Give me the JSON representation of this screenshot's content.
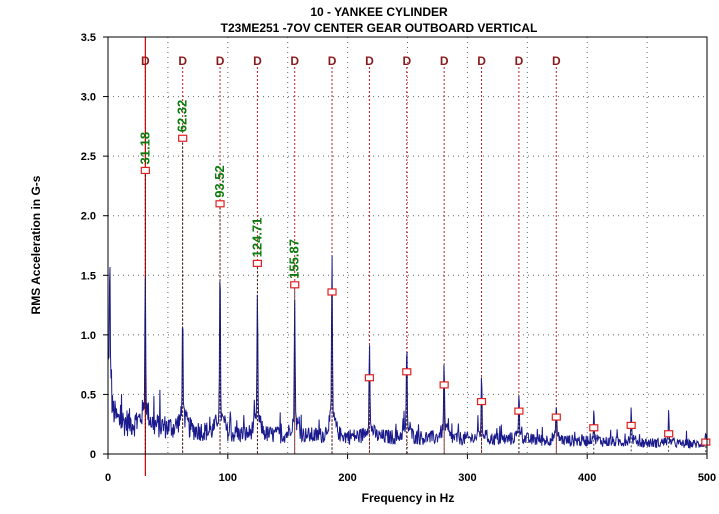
{
  "chart_data": {
    "type": "line",
    "title": "10   - YANKEE CYLINDER",
    "subtitle": "T23ME251  -7OV   CENTER GEAR OUTBOARD VERTICAL",
    "xlabel": "Frequency in Hz",
    "ylabel": "RMS Acceleration in G-s",
    "xlim": [
      0,
      500
    ],
    "ylim": [
      0,
      3.5
    ],
    "x_ticks": [
      "0",
      "100",
      "200",
      "300",
      "400",
      "500"
    ],
    "y_ticks": [
      "0",
      "0.5",
      "1.0",
      "1.5",
      "2.0",
      "2.5",
      "3.0",
      "3.5"
    ],
    "grid": true,
    "colors": {
      "spectrum": "#1a1a8c",
      "harmonic_line": "#b22222",
      "marker": "#e02020",
      "peak_label": "#0a7a0a",
      "cursor": "#cc0000"
    },
    "cursor_x": 31.18,
    "harmonic_marker_label": "D",
    "harmonic_lines_x": [
      31.18,
      62.32,
      93.52,
      124.71,
      155.87,
      187.0,
      218.2,
      249.4,
      280.6,
      311.8,
      343.0,
      374.2
    ],
    "peak_markers": [
      {
        "x": 31.18,
        "y": 2.38,
        "label": "31.18"
      },
      {
        "x": 62.32,
        "y": 2.65,
        "label": "62.32"
      },
      {
        "x": 93.52,
        "y": 2.1,
        "label": "93.52"
      },
      {
        "x": 124.71,
        "y": 1.6,
        "label": "124.71"
      },
      {
        "x": 155.87,
        "y": 1.42,
        "label": "155.87"
      },
      {
        "x": 187.0,
        "y": 1.36,
        "label": ""
      },
      {
        "x": 218.2,
        "y": 0.64,
        "label": ""
      },
      {
        "x": 249.4,
        "y": 0.69,
        "label": ""
      },
      {
        "x": 280.6,
        "y": 0.58,
        "label": ""
      },
      {
        "x": 311.8,
        "y": 0.44,
        "label": ""
      },
      {
        "x": 343.0,
        "y": 0.36,
        "label": ""
      },
      {
        "x": 374.2,
        "y": 0.31,
        "label": ""
      },
      {
        "x": 405.5,
        "y": 0.22,
        "label": ""
      },
      {
        "x": 436.7,
        "y": 0.24,
        "label": ""
      },
      {
        "x": 468.0,
        "y": 0.17,
        "label": ""
      },
      {
        "x": 499.0,
        "y": 0.1,
        "label": ""
      }
    ],
    "spectrum_peaks": [
      {
        "x": 1.5,
        "y": 1.2
      },
      {
        "x": 31.18,
        "y": 1.1
      },
      {
        "x": 62.32,
        "y": 0.88
      },
      {
        "x": 93.52,
        "y": 1.22
      },
      {
        "x": 124.71,
        "y": 1.08
      },
      {
        "x": 155.87,
        "y": 1.02
      },
      {
        "x": 187.0,
        "y": 1.35
      },
      {
        "x": 218.2,
        "y": 0.72
      },
      {
        "x": 249.4,
        "y": 0.68
      },
      {
        "x": 280.6,
        "y": 0.58
      },
      {
        "x": 311.8,
        "y": 0.44
      },
      {
        "x": 343.0,
        "y": 0.36
      },
      {
        "x": 374.2,
        "y": 0.29
      },
      {
        "x": 405.5,
        "y": 0.22
      },
      {
        "x": 436.7,
        "y": 0.24
      },
      {
        "x": 468.0,
        "y": 0.17
      },
      {
        "x": 499.0,
        "y": 0.1
      }
    ],
    "noise_floor": [
      {
        "x": 5,
        "y": 0.28
      },
      {
        "x": 100,
        "y": 0.17
      },
      {
        "x": 200,
        "y": 0.15
      },
      {
        "x": 300,
        "y": 0.13
      },
      {
        "x": 400,
        "y": 0.11
      },
      {
        "x": 500,
        "y": 0.08
      }
    ]
  }
}
